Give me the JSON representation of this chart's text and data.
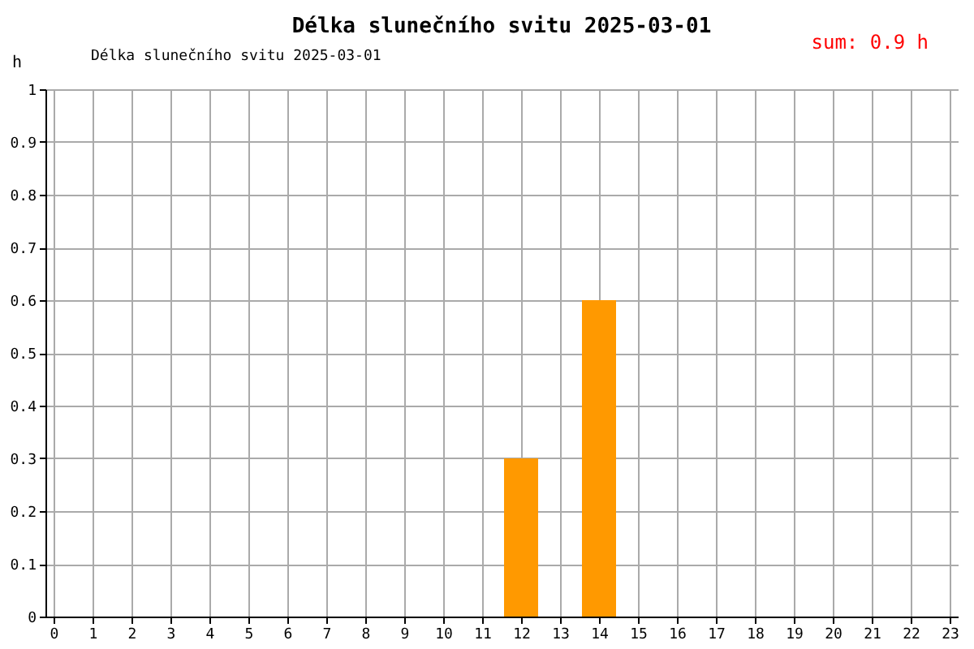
{
  "chart_data": {
    "type": "bar",
    "title": "Délka slunečního svitu 2025-03-01",
    "ylabel": "h",
    "annotations": [
      "sum: 0.9 h"
    ],
    "x": [
      12,
      14
    ],
    "series": [
      {
        "name": "Délka slunečního svitu 2025-03-01",
        "color": "#ff9900",
        "values": [
          0.3,
          0.6
        ]
      }
    ],
    "xlim": [
      0,
      23
    ],
    "xticks": [
      0,
      1,
      2,
      3,
      4,
      5,
      6,
      7,
      8,
      9,
      10,
      11,
      12,
      13,
      14,
      15,
      16,
      17,
      18,
      19,
      20,
      21,
      22,
      23
    ],
    "ylim": [
      0,
      1
    ],
    "yticks": [
      0,
      0.1,
      0.2,
      0.3,
      0.4,
      0.5,
      0.6,
      0.7,
      0.8,
      0.9,
      1
    ],
    "grid": true,
    "legend": "top left"
  }
}
